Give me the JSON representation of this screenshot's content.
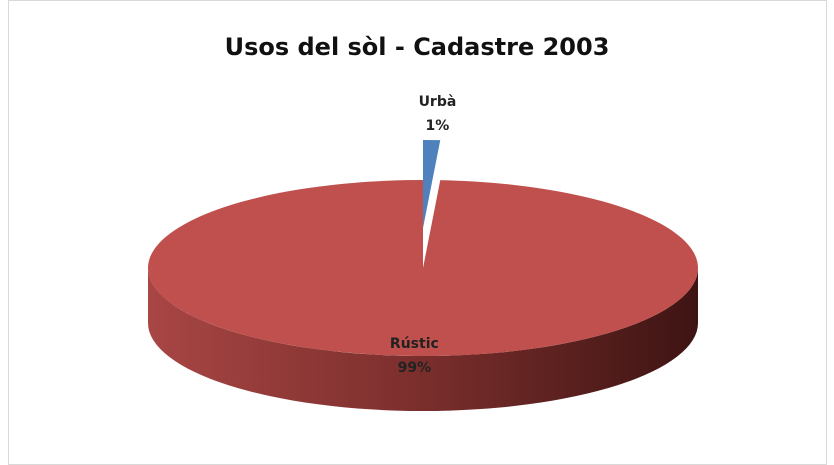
{
  "chart_data": {
    "type": "pie3d",
    "title": "Usos del sòl - Cadastre 2003",
    "categories": [
      "Urbà",
      "Rústic"
    ],
    "values": [
      1,
      99
    ],
    "value_labels": [
      "1%",
      "99%"
    ],
    "colors": [
      "#4f81bd",
      "#c0504d"
    ]
  }
}
